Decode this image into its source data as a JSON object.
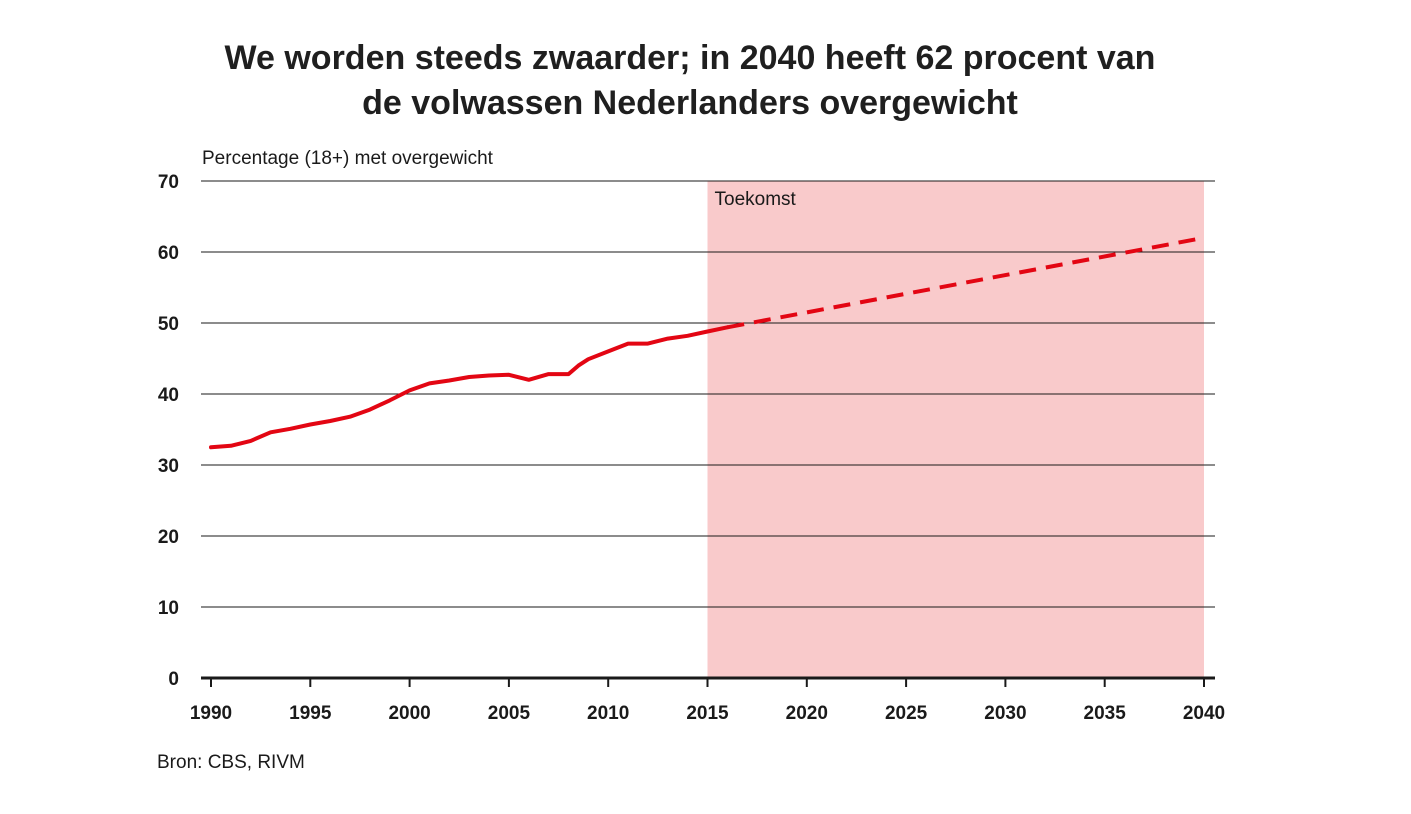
{
  "title_lines": [
    "We worden steeds zwaarder; in 2040 heeft 62 procent van",
    "de volwassen Nederlanders overgewicht"
  ],
  "source": "Bron: CBS, RIVM",
  "chart_data": {
    "type": "line",
    "title": "We worden steeds zwaarder; in 2040 heeft 62 procent van de volwassen Nederlanders overgewicht",
    "ylabel": "Percentage (18+) met overgewicht",
    "xlabel": "",
    "xlim": [
      1990,
      2040
    ],
    "ylim": [
      0,
      70
    ],
    "x_ticks": [
      1990,
      1995,
      2000,
      2005,
      2010,
      2015,
      2020,
      2025,
      2030,
      2035,
      2040
    ],
    "y_ticks": [
      0,
      10,
      20,
      30,
      40,
      50,
      60,
      70
    ],
    "grid": "horizontal",
    "colors": {
      "line": "#e30613",
      "future_band": "#f9cacb",
      "grid": "#1a1a1a"
    },
    "shaded_region": {
      "label": "Toekomst",
      "x_from": 2015,
      "x_to": 2040
    },
    "series": [
      {
        "style": "solid",
        "x": [
          1990,
          1991,
          1992,
          1993,
          1994,
          1995,
          1996,
          1997,
          1998,
          1999,
          2000,
          2001,
          2002,
          2003,
          2004,
          2005,
          2006,
          2007,
          2008,
          2008.5,
          2009,
          2010,
          2011,
          2012,
          2013,
          2014,
          2015,
          2016
        ],
        "values": [
          32.5,
          32.7,
          33.4,
          34.6,
          35.1,
          35.7,
          36.2,
          36.8,
          37.8,
          39.1,
          40.5,
          41.5,
          41.9,
          42.4,
          42.6,
          42.7,
          42.0,
          42.8,
          42.8,
          44.0,
          44.9,
          46.0,
          47.1,
          47.1,
          47.8,
          48.2,
          48.8,
          49.4
        ]
      },
      {
        "style": "dashed",
        "x": [
          2016,
          2040
        ],
        "values": [
          49.4,
          62.0
        ]
      }
    ]
  }
}
